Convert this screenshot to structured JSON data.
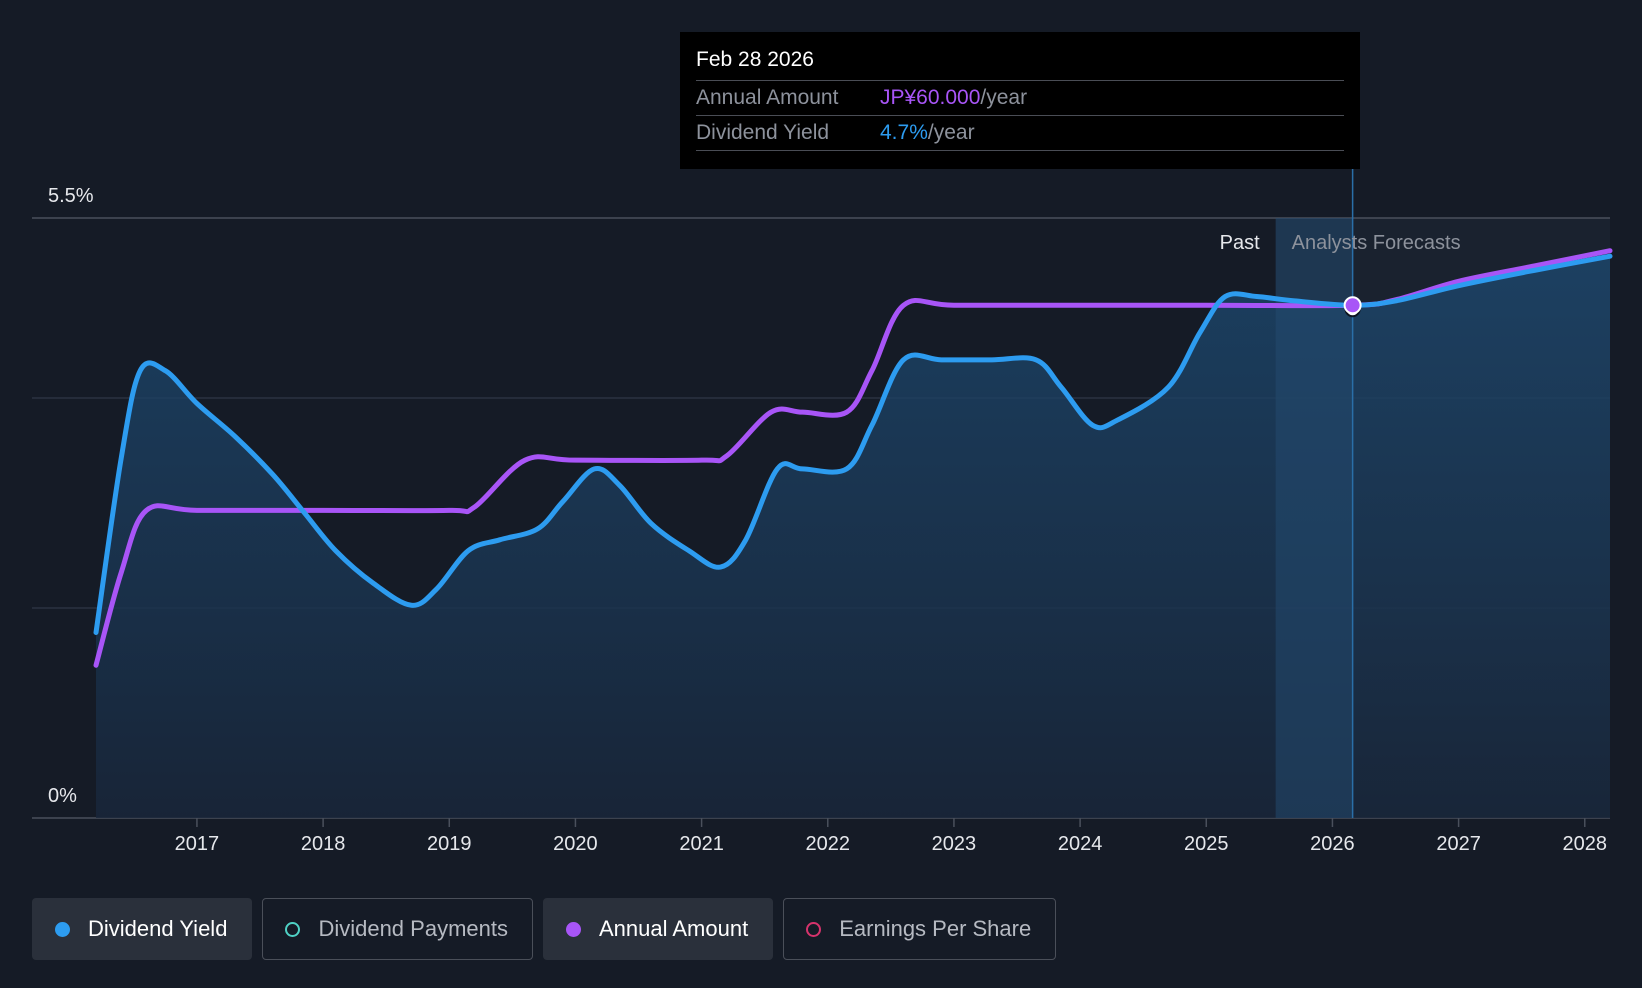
{
  "tooltip": {
    "date": "Feb 28 2026",
    "rows": [
      {
        "label": "Annual Amount",
        "value": "JP¥60.000",
        "unit": "/year"
      },
      {
        "label": "Dividend Yield",
        "value": "4.7%",
        "unit": "/year"
      }
    ]
  },
  "legend": [
    {
      "label": "Dividend Yield",
      "color": "#2d9cf0",
      "active": true,
      "filled": true
    },
    {
      "label": "Dividend Payments",
      "color": "#4fd1c5",
      "active": false,
      "filled": false
    },
    {
      "label": "Annual Amount",
      "color": "#a855f7",
      "active": true,
      "filled": true
    },
    {
      "label": "Earnings Per Share",
      "color": "#d6336c",
      "active": false,
      "filled": false
    }
  ],
  "chart_data": {
    "type": "line",
    "xlim": [
      2016.2,
      2028.2
    ],
    "ylim": [
      0,
      5.5
    ],
    "y_ticks": [
      {
        "value": 5.5,
        "label": "5.5%"
      },
      {
        "value": 0,
        "label": "0%"
      }
    ],
    "x_ticks": [
      2017,
      2018,
      2019,
      2020,
      2021,
      2022,
      2023,
      2024,
      2025,
      2026,
      2027,
      2028
    ],
    "x_tick_labels": [
      "2017",
      "2018",
      "2019",
      "2020",
      "2021",
      "2022",
      "2023",
      "2024",
      "2025",
      "2026",
      "2027",
      "2028"
    ],
    "grid": true,
    "past_label": "Past",
    "forecast_label": "Analysts Forecasts",
    "forecast_start": 2025.55,
    "highlight_x": 2026.16,
    "series": [
      {
        "name": "Dividend Yield",
        "color": "#2d9cf0",
        "points": [
          [
            2016.2,
            1.7
          ],
          [
            2016.4,
            3.3
          ],
          [
            2016.55,
            4.1
          ],
          [
            2016.75,
            4.1
          ],
          [
            2017,
            3.8
          ],
          [
            2017.3,
            3.5
          ],
          [
            2017.6,
            3.15
          ],
          [
            2017.85,
            2.8
          ],
          [
            2018.1,
            2.45
          ],
          [
            2018.4,
            2.15
          ],
          [
            2018.7,
            1.95
          ],
          [
            2018.9,
            2.1
          ],
          [
            2019.15,
            2.45
          ],
          [
            2019.4,
            2.55
          ],
          [
            2019.7,
            2.65
          ],
          [
            2019.9,
            2.9
          ],
          [
            2020.15,
            3.2
          ],
          [
            2020.35,
            3.05
          ],
          [
            2020.6,
            2.7
          ],
          [
            2020.9,
            2.45
          ],
          [
            2021.15,
            2.3
          ],
          [
            2021.35,
            2.55
          ],
          [
            2021.6,
            3.2
          ],
          [
            2021.8,
            3.2
          ],
          [
            2022.15,
            3.2
          ],
          [
            2022.35,
            3.6
          ],
          [
            2022.6,
            4.2
          ],
          [
            2022.9,
            4.2
          ],
          [
            2023.3,
            4.2
          ],
          [
            2023.65,
            4.2
          ],
          [
            2023.85,
            3.95
          ],
          [
            2024.1,
            3.6
          ],
          [
            2024.3,
            3.65
          ],
          [
            2024.7,
            3.95
          ],
          [
            2024.95,
            4.45
          ],
          [
            2025.15,
            4.78
          ],
          [
            2025.4,
            4.78
          ],
          [
            2025.7,
            4.74
          ],
          [
            2026.16,
            4.7
          ],
          [
            2026.5,
            4.74
          ],
          [
            2027,
            4.88
          ],
          [
            2027.6,
            5.02
          ],
          [
            2028.2,
            5.15
          ]
        ]
      },
      {
        "name": "Annual Amount",
        "color": "#a855f7",
        "points": [
          [
            2016.2,
            1.4
          ],
          [
            2016.4,
            2.25
          ],
          [
            2016.6,
            2.82
          ],
          [
            2017,
            2.82
          ],
          [
            2018,
            2.82
          ],
          [
            2019,
            2.82
          ],
          [
            2019.2,
            2.85
          ],
          [
            2019.6,
            3.28
          ],
          [
            2020,
            3.28
          ],
          [
            2021,
            3.28
          ],
          [
            2021.2,
            3.32
          ],
          [
            2021.55,
            3.72
          ],
          [
            2021.8,
            3.72
          ],
          [
            2022.15,
            3.72
          ],
          [
            2022.35,
            4.1
          ],
          [
            2022.6,
            4.7
          ],
          [
            2023,
            4.7
          ],
          [
            2024,
            4.7
          ],
          [
            2025,
            4.7
          ],
          [
            2026.16,
            4.7
          ],
          [
            2026.5,
            4.75
          ],
          [
            2027,
            4.92
          ],
          [
            2027.6,
            5.06
          ],
          [
            2028.2,
            5.2
          ]
        ]
      }
    ]
  }
}
